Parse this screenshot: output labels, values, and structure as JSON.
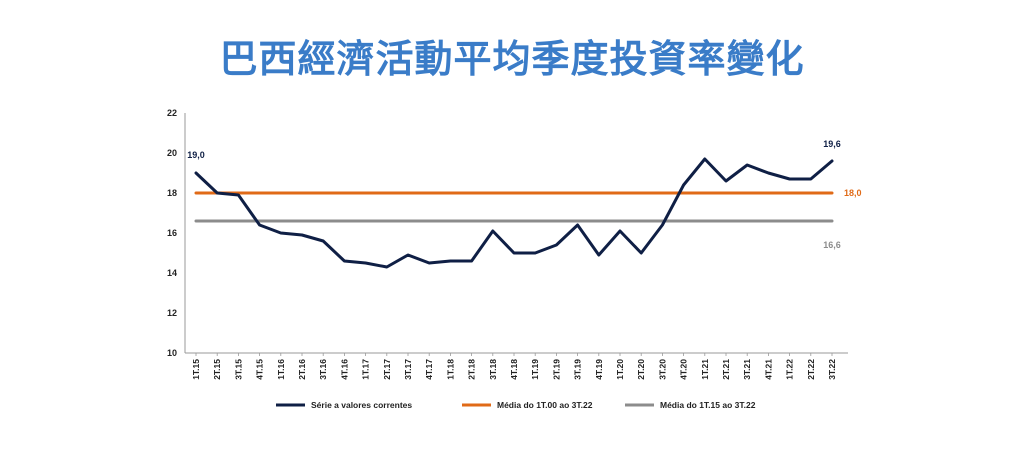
{
  "chart_data": {
    "type": "line",
    "title": "巴西經濟活動平均季度投資率變化",
    "xlabel": "",
    "ylabel": "",
    "ylim": [
      10,
      22
    ],
    "yticks": [
      "10",
      "12",
      "14",
      "16",
      "18",
      "20",
      "22"
    ],
    "grid": false,
    "legend_position": "bottom",
    "categories": [
      "1T.15",
      "2T.15",
      "3T.15",
      "4T.15",
      "1T.16",
      "2T.16",
      "3T.16",
      "4T.16",
      "1T.17",
      "2T.17",
      "3T.17",
      "4T.17",
      "1T.18",
      "2T.18",
      "3T.18",
      "4T.18",
      "1T.19",
      "2T.19",
      "3T.19",
      "4T.19",
      "1T.20",
      "2T.20",
      "3T.20",
      "4T.20",
      "1T.21",
      "2T.21",
      "3T.21",
      "4T.21",
      "1T.22",
      "2T.22",
      "3T.22"
    ],
    "series": [
      {
        "name": "Série a valores correntes",
        "color": "#0f1f45",
        "values": [
          19.0,
          18.0,
          17.9,
          16.4,
          16.0,
          15.9,
          15.6,
          14.6,
          14.5,
          14.3,
          14.9,
          14.5,
          14.6,
          14.6,
          16.1,
          15.0,
          15.0,
          15.4,
          16.4,
          14.9,
          16.1,
          15.0,
          16.4,
          18.4,
          19.7,
          18.6,
          19.4,
          19.0,
          18.7,
          18.7,
          19.6
        ]
      },
      {
        "name": "Média do 1T.00 ao 3T.22",
        "color": "#e06a17",
        "values": [
          18.0,
          18.0,
          18.0,
          18.0,
          18.0,
          18.0,
          18.0,
          18.0,
          18.0,
          18.0,
          18.0,
          18.0,
          18.0,
          18.0,
          18.0,
          18.0,
          18.0,
          18.0,
          18.0,
          18.0,
          18.0,
          18.0,
          18.0,
          18.0,
          18.0,
          18.0,
          18.0,
          18.0,
          18.0,
          18.0,
          18.0
        ]
      },
      {
        "name": "Média do 1T.15 ao 3T.22",
        "color": "#8c8c8c",
        "values": [
          16.6,
          16.6,
          16.6,
          16.6,
          16.6,
          16.6,
          16.6,
          16.6,
          16.6,
          16.6,
          16.6,
          16.6,
          16.6,
          16.6,
          16.6,
          16.6,
          16.6,
          16.6,
          16.6,
          16.6,
          16.6,
          16.6,
          16.6,
          16.6,
          16.6,
          16.6,
          16.6,
          16.6,
          16.6,
          16.6,
          16.6
        ]
      }
    ],
    "annotations": [
      {
        "text": "19,0",
        "series": 0,
        "index": 0
      },
      {
        "text": "19,6",
        "series": 0,
        "index": 30
      },
      {
        "text": "18,0",
        "series": 1,
        "index": 30
      },
      {
        "text": "16,6",
        "series": 2,
        "index": 30
      }
    ]
  }
}
